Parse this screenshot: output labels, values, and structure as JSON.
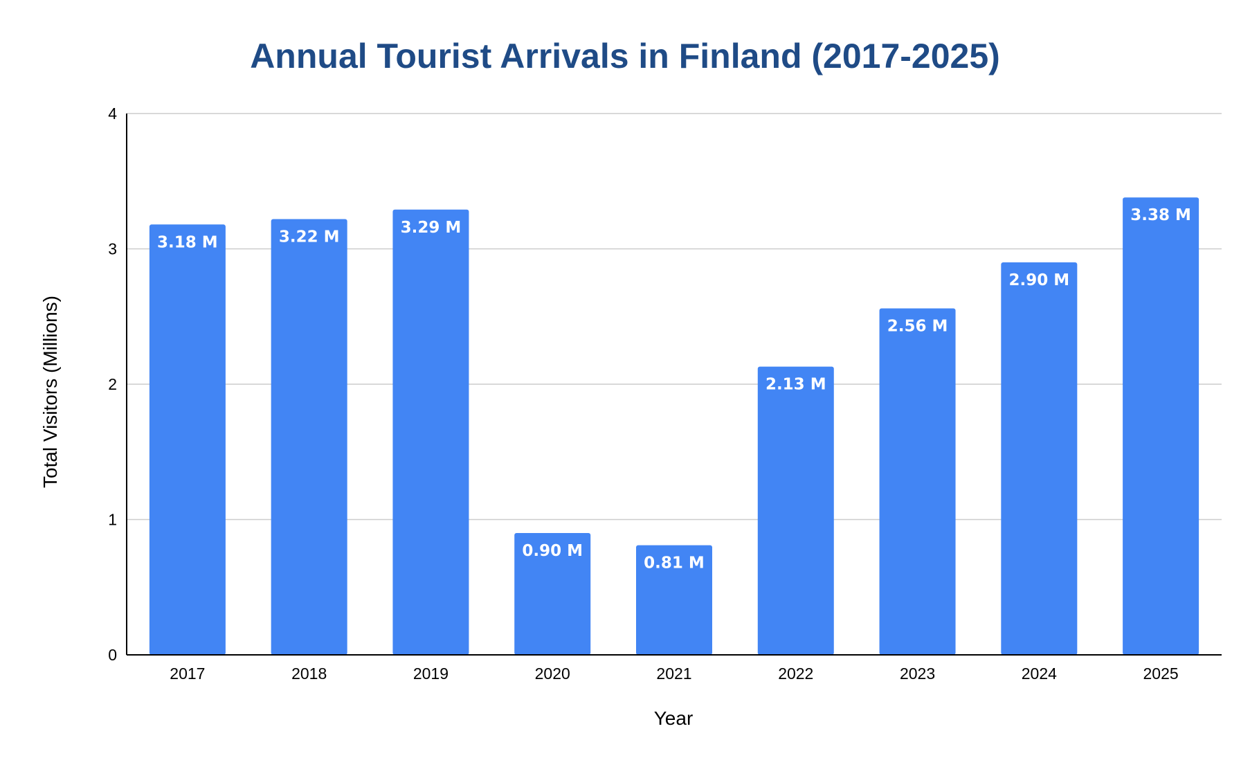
{
  "chart_data": {
    "type": "bar",
    "title": "Annual Tourist Arrivals in Finland (2017-2025)",
    "xlabel": "Year",
    "ylabel": "Total Visitors (Millions)",
    "categories": [
      "2017",
      "2018",
      "2019",
      "2020",
      "2021",
      "2022",
      "2023",
      "2024",
      "2025"
    ],
    "values": [
      3.18,
      3.22,
      3.29,
      0.9,
      0.81,
      2.13,
      2.56,
      2.9,
      3.38
    ],
    "data_labels": [
      "3.18 M",
      "3.22 M",
      "3.29 M",
      "0.90 M",
      "0.81 M",
      "2.13 M",
      "2.56 M",
      "2.90 M",
      "3.38 M"
    ],
    "ylim": [
      0,
      4
    ],
    "yticks": [
      "0",
      "1",
      "2",
      "3",
      "4"
    ],
    "grid": true,
    "legend": "none",
    "colors": {
      "bar": "#4285f4",
      "title": "#1f4b86",
      "grid": "#cccccc",
      "axis": "#000000",
      "data_label": "#ffffff"
    }
  }
}
